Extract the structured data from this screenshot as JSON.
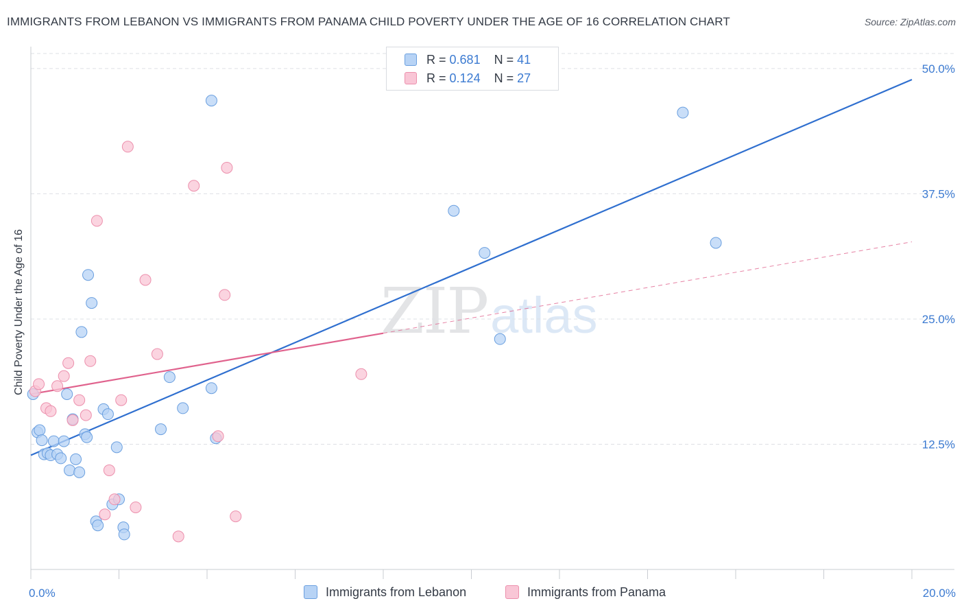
{
  "header": {
    "title": "IMMIGRANTS FROM LEBANON VS IMMIGRANTS FROM PANAMA CHILD POVERTY UNDER THE AGE OF 16 CORRELATION CHART",
    "source": "Source: ZipAtlas.com"
  },
  "watermark": {
    "zip": "ZIP",
    "atlas": "atlas"
  },
  "legend": {
    "rows": [
      {
        "r_label": "R =",
        "r_value": "0.681",
        "n_label": "N =",
        "n_value": "41"
      },
      {
        "r_label": "R =",
        "r_value": "0.124",
        "n_label": "N =",
        "n_value": "27"
      }
    ]
  },
  "colors": {
    "lebanon_fill": "#b7d3f5",
    "lebanon_stroke": "#6a9fdf",
    "lebanon_line": "#2f6fcf",
    "panama_fill": "#f9c6d6",
    "panama_stroke": "#ec8fac",
    "panama_line": "#e0628d",
    "tick_label": "#3b7ad1",
    "grid": "#dde0e5"
  },
  "chart_data": {
    "type": "scatter",
    "title": "IMMIGRANTS FROM LEBANON VS IMMIGRANTS FROM PANAMA CHILD POVERTY UNDER THE AGE OF 16 CORRELATION CHART",
    "xlabel": "",
    "ylabel": "Child Poverty Under the Age of 16",
    "xlim": [
      0,
      20
    ],
    "ylim": [
      0,
      51.5
    ],
    "x_tick_labels": [
      "0.0%",
      "20.0%"
    ],
    "y_ticks": [
      12.5,
      25.0,
      37.5,
      50.0
    ],
    "y_tick_labels": [
      "12.5%",
      "25.0%",
      "37.5%",
      "50.0%"
    ],
    "grid": true,
    "legend_position": "top-center",
    "series": [
      {
        "name": "Immigrants from Lebanon",
        "r": 0.681,
        "n": 41,
        "trend": {
          "x": [
            0,
            20
          ],
          "y": [
            11.4,
            48.9
          ]
        },
        "points": [
          [
            0.05,
            17.5
          ],
          [
            0.15,
            13.7
          ],
          [
            0.2,
            13.9
          ],
          [
            0.25,
            12.9
          ],
          [
            0.3,
            11.5
          ],
          [
            0.38,
            11.6
          ],
          [
            0.45,
            11.4
          ],
          [
            0.52,
            12.8
          ],
          [
            0.6,
            11.5
          ],
          [
            0.68,
            11.1
          ],
          [
            0.75,
            12.8
          ],
          [
            0.82,
            17.5
          ],
          [
            0.88,
            9.9
          ],
          [
            0.95,
            15.0
          ],
          [
            1.02,
            11.0
          ],
          [
            1.1,
            9.7
          ],
          [
            1.15,
            23.7
          ],
          [
            1.23,
            13.5
          ],
          [
            1.27,
            13.2
          ],
          [
            1.3,
            29.4
          ],
          [
            1.38,
            26.6
          ],
          [
            1.48,
            4.8
          ],
          [
            1.52,
            4.4
          ],
          [
            1.65,
            16.0
          ],
          [
            1.75,
            15.5
          ],
          [
            1.85,
            6.5
          ],
          [
            1.95,
            12.2
          ],
          [
            2.0,
            7.0
          ],
          [
            2.1,
            4.2
          ],
          [
            2.12,
            3.5
          ],
          [
            2.95,
            14.0
          ],
          [
            3.15,
            19.2
          ],
          [
            3.45,
            16.1
          ],
          [
            4.1,
            18.1
          ],
          [
            4.1,
            46.8
          ],
          [
            4.2,
            13.1
          ],
          [
            9.6,
            35.8
          ],
          [
            10.3,
            31.6
          ],
          [
            10.65,
            23.0
          ],
          [
            14.8,
            45.6
          ],
          [
            15.55,
            32.6
          ]
        ]
      },
      {
        "name": "Immigrants from Panama",
        "r": 0.124,
        "n": 27,
        "trend": {
          "x": [
            0,
            20
          ],
          "y": [
            17.5,
            32.7
          ]
        },
        "trend_solid_to_x": 8,
        "points": [
          [
            0.1,
            17.8
          ],
          [
            0.18,
            18.5
          ],
          [
            0.35,
            16.1
          ],
          [
            0.45,
            15.8
          ],
          [
            0.6,
            18.3
          ],
          [
            0.75,
            19.3
          ],
          [
            0.85,
            20.6
          ],
          [
            0.95,
            14.9
          ],
          [
            1.1,
            16.9
          ],
          [
            1.25,
            15.4
          ],
          [
            1.35,
            20.8
          ],
          [
            1.5,
            34.8
          ],
          [
            1.68,
            5.5
          ],
          [
            1.78,
            9.9
          ],
          [
            1.9,
            7.0
          ],
          [
            2.05,
            16.9
          ],
          [
            2.2,
            42.2
          ],
          [
            2.38,
            6.2
          ],
          [
            2.6,
            28.9
          ],
          [
            2.87,
            21.5
          ],
          [
            3.35,
            3.3
          ],
          [
            3.7,
            38.3
          ],
          [
            4.25,
            13.3
          ],
          [
            4.4,
            27.4
          ],
          [
            4.45,
            40.1
          ],
          [
            4.65,
            5.3
          ],
          [
            7.5,
            19.5
          ]
        ]
      }
    ]
  },
  "bottom_legend": {
    "lebanon": "Immigrants from Lebanon",
    "panama": "Immigrants from Panama"
  }
}
